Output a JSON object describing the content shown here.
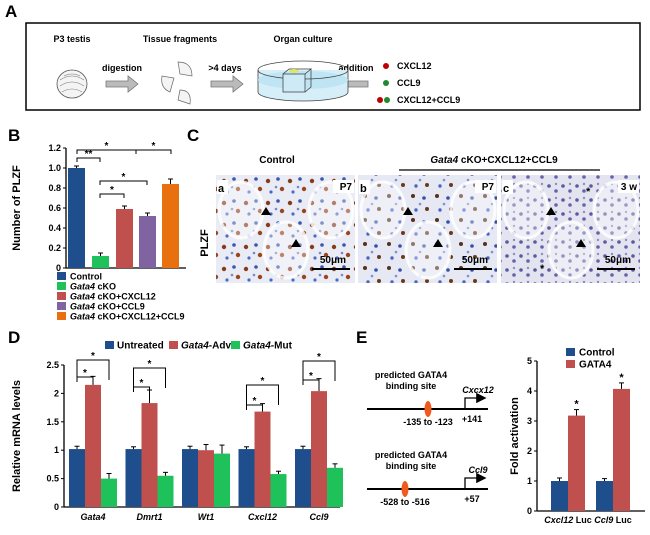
{
  "panel_labels": {
    "a": "A",
    "b": "B",
    "c": "C",
    "d": "D",
    "e": "E"
  },
  "panel_a": {
    "steps": [
      "P3 testis",
      "Tissue fragments",
      "Organ culture"
    ],
    "arrows": [
      "digestion",
      ">4 days",
      "addition"
    ],
    "treatments": [
      "CXCL12",
      "CCL9",
      "CXCL12+CCL9"
    ],
    "colors": {
      "red": "#c00000",
      "green": "#1e8a2e"
    }
  },
  "panel_c": {
    "header_control": "Control",
    "header_treated_italic": "Gata4",
    "header_treated_rest": " cKO+CXCL12+CCL9",
    "row_label": "PLZF",
    "images": [
      {
        "letter": "a",
        "age": "P7",
        "scale": "50μm"
      },
      {
        "letter": "b",
        "age": "P7",
        "scale": "50μm"
      },
      {
        "letter": "c",
        "age": "3 w",
        "scale": "50μm"
      }
    ]
  },
  "panel_e_diagram": {
    "title1": "predicted GATA4",
    "title2": "binding site",
    "genes": [
      {
        "name": "Cxcx12",
        "site": "-135 to -123",
        "tss": "+141"
      },
      {
        "name": "Ccl9",
        "site": "-528 to -516",
        "tss": "+57"
      }
    ]
  },
  "chart_data": [
    {
      "id": "B",
      "type": "bar",
      "ylabel": "Number of PLZF",
      "ylim": [
        0,
        1.2
      ],
      "yticks": [
        "0",
        "0.2",
        "0.4",
        "0.6",
        "0.8",
        "1.0",
        "1.2"
      ],
      "categories": [
        "Control",
        "Gata4 cKO",
        "Gata4 cKO+CXCL12",
        "Gata4 cKO+CCL9",
        "Gata4 cKO+CXCL12+CCL9"
      ],
      "legend": [
        {
          "italic": "",
          "rest": "Control",
          "color": "#1f4e8c"
        },
        {
          "italic": "Gata4",
          "rest": " cKO",
          "color": "#1fc25a"
        },
        {
          "italic": "Gata4",
          "rest": " cKO+CXCL12",
          "color": "#c0504d"
        },
        {
          "italic": "Gata4",
          "rest": " cKO+CCL9",
          "color": "#8064a2"
        },
        {
          "italic": "Gata4",
          "rest": " cKO+CXCL12+CCL9",
          "color": "#e8700f"
        }
      ],
      "values": [
        1.0,
        0.12,
        0.59,
        0.52,
        0.84
      ],
      "errors": [
        0.02,
        0.03,
        0.03,
        0.03,
        0.05
      ],
      "significance": [
        "**",
        "*",
        "*",
        "*",
        "*"
      ]
    },
    {
      "id": "D",
      "type": "bar",
      "ylabel": "Relative mRNA levels",
      "ylim": [
        0,
        2.5
      ],
      "yticks": [
        "0",
        "0.5",
        "1",
        "1.5",
        "2",
        "2.5"
      ],
      "categories": [
        "Gata4",
        "Dmrt1",
        "Wt1",
        "Cxcl12",
        "Ccl9"
      ],
      "legend": [
        {
          "italic": "",
          "rest": "Untreated",
          "color": "#1f4e8c"
        },
        {
          "italic": "Gata4",
          "rest": "-Adv",
          "color": "#c0504d"
        },
        {
          "italic": "Gata4",
          "rest": "-Mut",
          "color": "#1fc25a"
        }
      ],
      "series": [
        {
          "name": "Untreated",
          "values": [
            1.02,
            1.02,
            1.02,
            1.02,
            1.02
          ],
          "errors": [
            0.05,
            0.04,
            0.05,
            0.04,
            0.05
          ]
        },
        {
          "name": "Gata4-Adv",
          "values": [
            2.15,
            1.83,
            1.0,
            1.68,
            2.04
          ],
          "errors": [
            0.15,
            0.23,
            0.1,
            0.14,
            0.22
          ]
        },
        {
          "name": "Gata4-Mut",
          "values": [
            0.5,
            0.55,
            0.94,
            0.58,
            0.69
          ],
          "errors": [
            0.09,
            0.06,
            0.15,
            0.05,
            0.07
          ]
        }
      ],
      "significance": "*"
    },
    {
      "id": "E",
      "type": "bar",
      "ylabel": "Fold activation",
      "ylim": [
        0,
        5
      ],
      "yticks": [
        "0",
        "1",
        "2",
        "3",
        "4",
        "5"
      ],
      "categories": [
        {
          "italic": "Cxcl12",
          "rest": " Luc"
        },
        {
          "italic": "Ccl9",
          "rest": " Luc"
        }
      ],
      "legend": [
        {
          "italic": "",
          "rest": "Control",
          "color": "#1f4e8c"
        },
        {
          "italic": "",
          "rest": "GATA4",
          "color": "#c0504d"
        }
      ],
      "series": [
        {
          "name": "Control",
          "values": [
            1.0,
            1.0
          ],
          "errors": [
            0.1,
            0.08
          ]
        },
        {
          "name": "GATA4",
          "values": [
            3.18,
            4.07
          ],
          "errors": [
            0.2,
            0.2
          ]
        }
      ],
      "significance": "*"
    }
  ]
}
